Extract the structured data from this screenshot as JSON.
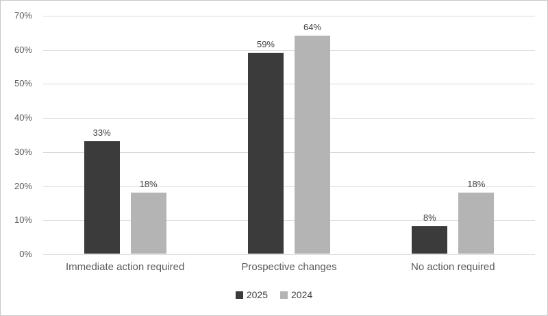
{
  "chart_data": {
    "type": "bar",
    "title": "",
    "xlabel": "",
    "ylabel": "",
    "categories": [
      "Immediate action required",
      "Prospective changes",
      "No action required"
    ],
    "series": [
      {
        "name": "2025",
        "color": "#3b3b3b",
        "values": [
          33,
          59,
          8
        ]
      },
      {
        "name": "2024",
        "color": "#b4b4b4",
        "values": [
          18,
          64,
          18
        ]
      }
    ],
    "value_suffix": "%",
    "ylim": [
      0,
      70
    ],
    "ytick_step": 10,
    "ytick_labels": [
      "0%",
      "10%",
      "20%",
      "30%",
      "40%",
      "50%",
      "60%",
      "70%"
    ],
    "grid": true,
    "legend_position": "bottom"
  },
  "colors": {
    "gridline": "#d9d9d9",
    "frame_border": "#c9c9c9",
    "tick_text": "#595959",
    "value_label_text": "#404040",
    "background": "#ffffff"
  }
}
